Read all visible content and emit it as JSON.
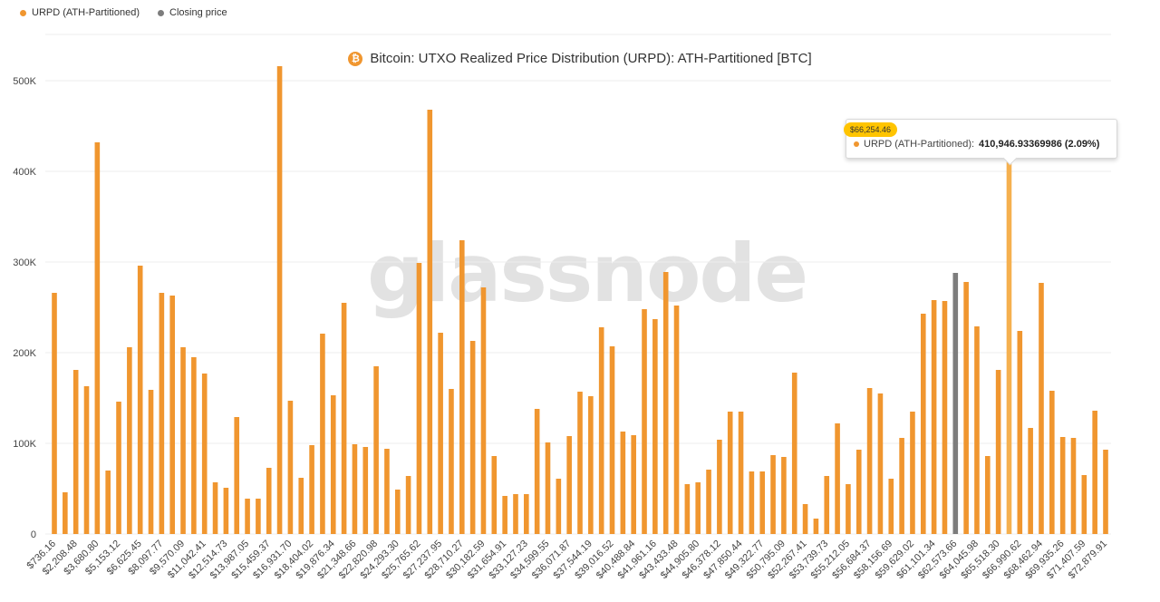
{
  "legend": {
    "items": [
      {
        "label": "URPD (ATH-Partitioned)",
        "color": "#f0962f"
      },
      {
        "label": "Closing price",
        "color": "#7d7d7d"
      }
    ]
  },
  "title": {
    "icon": "bitcoin-icon",
    "icon_glyph": "₿",
    "text": "Bitcoin: UTXO Realized Price Distribution (URPD): ATH-Partitioned [BTC]"
  },
  "watermark": "glassnode",
  "tooltip": {
    "header": "$66,254.46",
    "series_label": "URPD (ATH-Partitioned):",
    "value": "410,946.93369986 (2.09%)"
  },
  "colors": {
    "bar": "#f0962f",
    "bar_highlight": "#f5b04f",
    "closing": "#7d7d7d",
    "tooltip_badge": "#ffc400",
    "grid": "#ececec",
    "axis_text": "#444444"
  },
  "chart_data": {
    "type": "bar",
    "title": "Bitcoin: UTXO Realized Price Distribution (URPD): ATH-Partitioned [BTC]",
    "xlabel": "",
    "ylabel": "",
    "ylim": [
      0,
      520000
    ],
    "y_ticks": [
      0,
      100000,
      200000,
      300000,
      400000,
      500000
    ],
    "y_tick_labels": [
      "0",
      "100K",
      "200K",
      "300K",
      "400K",
      "500K"
    ],
    "x_tick_labels": [
      "$736.16",
      "$2,208.48",
      "$3,680.80",
      "$5,153.12",
      "$6,625.45",
      "$8,097.77",
      "$9,570.09",
      "$11,042.41",
      "$12,514.73",
      "$13,987.05",
      "$15,459.37",
      "$16,931.70",
      "$18,404.02",
      "$19,876.34",
      "$21,348.66",
      "$22,820.98",
      "$24,293.30",
      "$25,765.62",
      "$27,237.95",
      "$28,710.27",
      "$30,182.59",
      "$31,654.91",
      "$33,127.23",
      "$34,599.55",
      "$36,071.87",
      "$37,544.19",
      "$39,016.52",
      "$40,488.84",
      "$41,961.16",
      "$43,433.48",
      "$44,905.80",
      "$46,378.12",
      "$47,850.44",
      "$49,322.77",
      "$50,795.09",
      "$52,267.41",
      "$53,739.73",
      "$55,212.05",
      "$56,684.37",
      "$58,156.69",
      "$59,629.02",
      "$61,101.34",
      "$62,573.66",
      "$64,045.98",
      "$65,518.30",
      "$66,990.62",
      "$68,462.94",
      "$69,935.26",
      "$71,407.59",
      "$72,879.91"
    ],
    "bin_width": 736.16,
    "first_bin": 736.16,
    "closing_price_bin": 62573.66,
    "highlighted_bin": 66254.46,
    "values": [
      266000,
      46000,
      181000,
      163000,
      432000,
      70000,
      146000,
      206000,
      296000,
      159000,
      266000,
      263000,
      206000,
      195000,
      177000,
      57000,
      51000,
      129000,
      39000,
      39000,
      73000,
      516000,
      147000,
      62000,
      98000,
      221000,
      153000,
      255000,
      99000,
      96000,
      185000,
      94000,
      49000,
      64000,
      299000,
      468000,
      222000,
      160000,
      324000,
      213000,
      272000,
      86000,
      42000,
      44000,
      44000,
      138000,
      101000,
      61000,
      108000,
      157000,
      152000,
      228000,
      207000,
      113000,
      109000,
      248000,
      237000,
      289000,
      252000,
      55000,
      57000,
      71000,
      104000,
      135000,
      135000,
      69000,
      69000,
      87000,
      85000,
      178000,
      33000,
      17000,
      64000,
      122000,
      55000,
      93000,
      161000,
      155000,
      61000,
      106000,
      135000,
      243000,
      258000,
      257000,
      288000,
      278000,
      229000,
      86000,
      181000,
      410947,
      224000,
      117000,
      277000,
      158000,
      107000,
      106000,
      65000,
      136000,
      93000
    ]
  }
}
